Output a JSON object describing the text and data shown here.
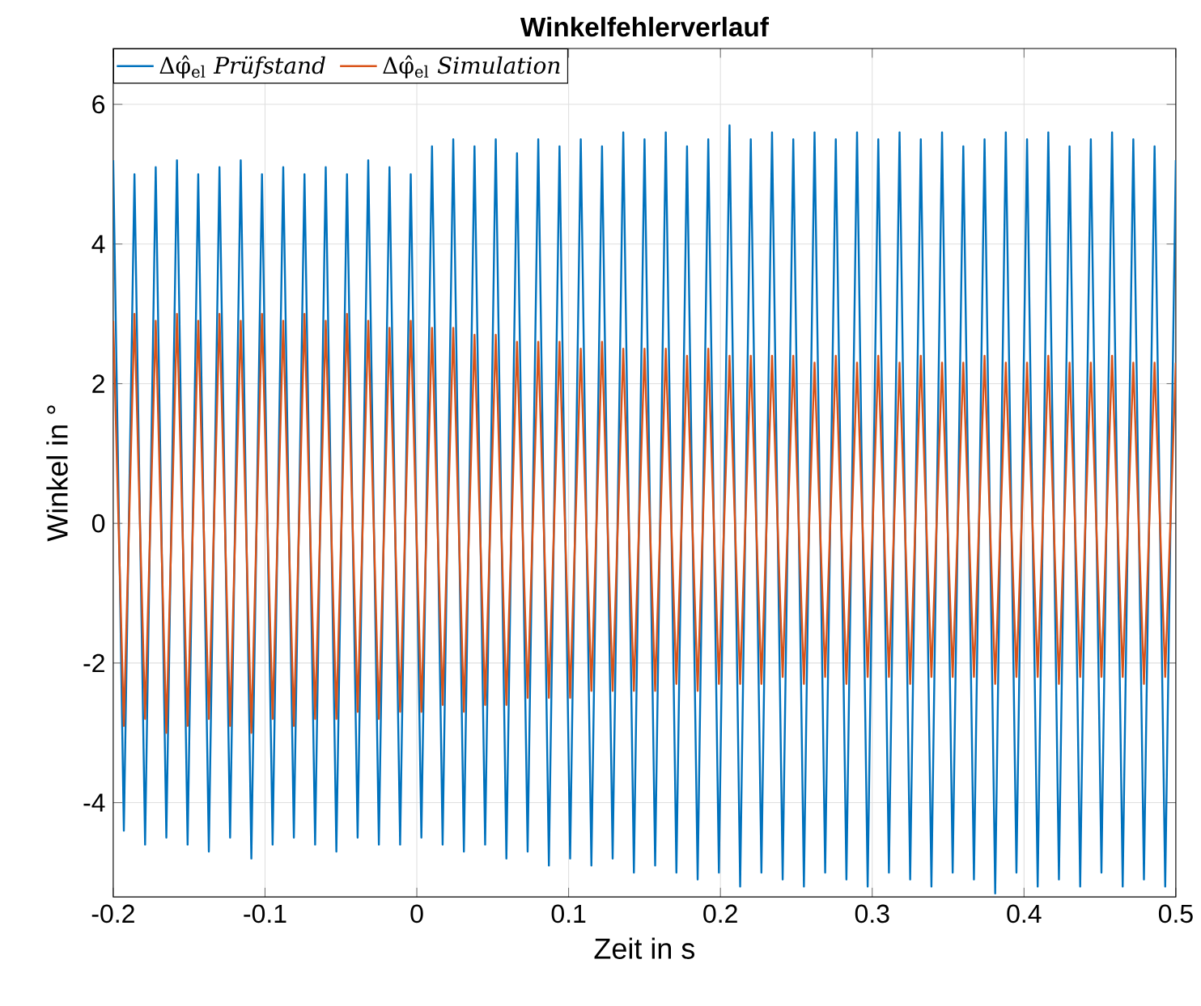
{
  "chart_data": {
    "type": "line",
    "title": "Winkelfehlerverlauf",
    "xlabel": "Zeit in s",
    "ylabel": "Winkel in °",
    "x": [
      -0.2,
      -0.193,
      -0.186,
      -0.179,
      -0.172,
      -0.165,
      -0.158,
      -0.151,
      -0.144,
      -0.137,
      -0.13,
      -0.123,
      -0.116,
      -0.109,
      -0.102,
      -0.095,
      -0.088,
      -0.081,
      -0.074,
      -0.067,
      -0.06,
      -0.053,
      -0.046,
      -0.039,
      -0.032,
      -0.025,
      -0.018,
      -0.011,
      -0.004,
      0.003,
      0.01,
      0.017,
      0.024,
      0.031,
      0.038,
      0.045,
      0.052,
      0.059,
      0.066,
      0.073,
      0.08,
      0.087,
      0.094,
      0.101,
      0.108,
      0.115,
      0.122,
      0.129,
      0.136,
      0.143,
      0.15,
      0.157,
      0.164,
      0.171,
      0.178,
      0.185,
      0.192,
      0.199,
      0.206,
      0.213,
      0.22,
      0.227,
      0.234,
      0.241,
      0.248,
      0.255,
      0.262,
      0.269,
      0.276,
      0.283,
      0.29,
      0.297,
      0.304,
      0.311,
      0.318,
      0.325,
      0.332,
      0.339,
      0.346,
      0.353,
      0.36,
      0.367,
      0.374,
      0.381,
      0.388,
      0.395,
      0.402,
      0.409,
      0.416,
      0.423,
      0.43,
      0.437,
      0.444,
      0.451,
      0.458,
      0.465,
      0.472,
      0.479,
      0.486,
      0.493,
      0.5
    ],
    "series": [
      {
        "name": "Δφ̂$_{el}$ *Prüfstand*",
        "color": "#0072bd",
        "values": [
          5.2,
          -4.4,
          5.0,
          -4.6,
          5.1,
          -4.5,
          5.2,
          -4.6,
          5.0,
          -4.7,
          5.1,
          -4.5,
          5.2,
          -4.8,
          5.0,
          -4.6,
          5.1,
          -4.5,
          5.0,
          -4.6,
          5.1,
          -4.7,
          5.0,
          -4.5,
          5.2,
          -4.6,
          5.1,
          -4.6,
          5.0,
          -4.5,
          5.4,
          -4.6,
          5.5,
          -4.7,
          5.4,
          -4.6,
          5.5,
          -4.8,
          5.3,
          -4.7,
          5.5,
          -4.9,
          5.4,
          -4.8,
          5.5,
          -4.9,
          5.4,
          -4.8,
          5.6,
          -5.0,
          5.5,
          -4.9,
          5.6,
          -5.0,
          5.4,
          -5.1,
          5.5,
          -5.0,
          5.7,
          -5.2,
          5.5,
          -5.0,
          5.6,
          -5.1,
          5.5,
          -5.2,
          5.6,
          -5.0,
          5.5,
          -5.1,
          5.6,
          -5.2,
          5.5,
          -5.0,
          5.6,
          -5.1,
          5.5,
          -5.2,
          5.6,
          -5.0,
          5.4,
          -5.1,
          5.5,
          -5.3,
          5.6,
          -5.0,
          5.5,
          -5.2,
          5.6,
          -5.1,
          5.4,
          -5.2,
          5.5,
          -5.0,
          5.6,
          -5.2,
          5.5,
          -5.1,
          5.4,
          -5.2,
          5.2
        ]
      },
      {
        "name": "Δφ̂$_{el}$ *Simulation*",
        "color": "#d95319",
        "values": [
          2.9,
          -2.9,
          3.0,
          -2.8,
          2.9,
          -3.0,
          3.0,
          -2.9,
          2.9,
          -2.8,
          3.0,
          -2.9,
          2.9,
          -3.0,
          3.0,
          -2.8,
          2.9,
          -2.9,
          3.0,
          -2.8,
          2.9,
          -2.8,
          3.0,
          -2.7,
          2.9,
          -2.8,
          2.8,
          -2.7,
          2.9,
          -2.7,
          2.8,
          -2.6,
          2.8,
          -2.7,
          2.7,
          -2.6,
          2.7,
          -2.6,
          2.6,
          -2.5,
          2.6,
          -2.5,
          2.6,
          -2.5,
          2.5,
          -2.4,
          2.6,
          -2.4,
          2.5,
          -2.4,
          2.5,
          -2.4,
          2.5,
          -2.3,
          2.4,
          -2.4,
          2.5,
          -2.3,
          2.4,
          -2.3,
          2.4,
          -2.3,
          2.4,
          -2.2,
          2.4,
          -2.3,
          2.3,
          -2.2,
          2.4,
          -2.3,
          2.3,
          -2.2,
          2.4,
          -2.2,
          2.3,
          -2.3,
          2.4,
          -2.2,
          2.3,
          -2.2,
          2.3,
          -2.2,
          2.4,
          -2.3,
          2.3,
          -2.2,
          2.3,
          -2.2,
          2.4,
          -2.3,
          2.3,
          -2.2,
          2.3,
          -2.2,
          2.4,
          -2.2,
          2.3,
          -2.3,
          2.3,
          -2.2,
          2.3
        ]
      }
    ],
    "xlim": [
      -0.2,
      0.5
    ],
    "ylim": [
      -5.35,
      6.8
    ],
    "xticks": [
      -0.2,
      -0.1,
      0,
      0.1,
      0.2,
      0.3,
      0.4,
      0.5
    ],
    "yticks": [
      -4,
      -2,
      0,
      2,
      4,
      6
    ],
    "grid": true,
    "legend": "top left",
    "marker": "none",
    "line_style": "solid"
  }
}
